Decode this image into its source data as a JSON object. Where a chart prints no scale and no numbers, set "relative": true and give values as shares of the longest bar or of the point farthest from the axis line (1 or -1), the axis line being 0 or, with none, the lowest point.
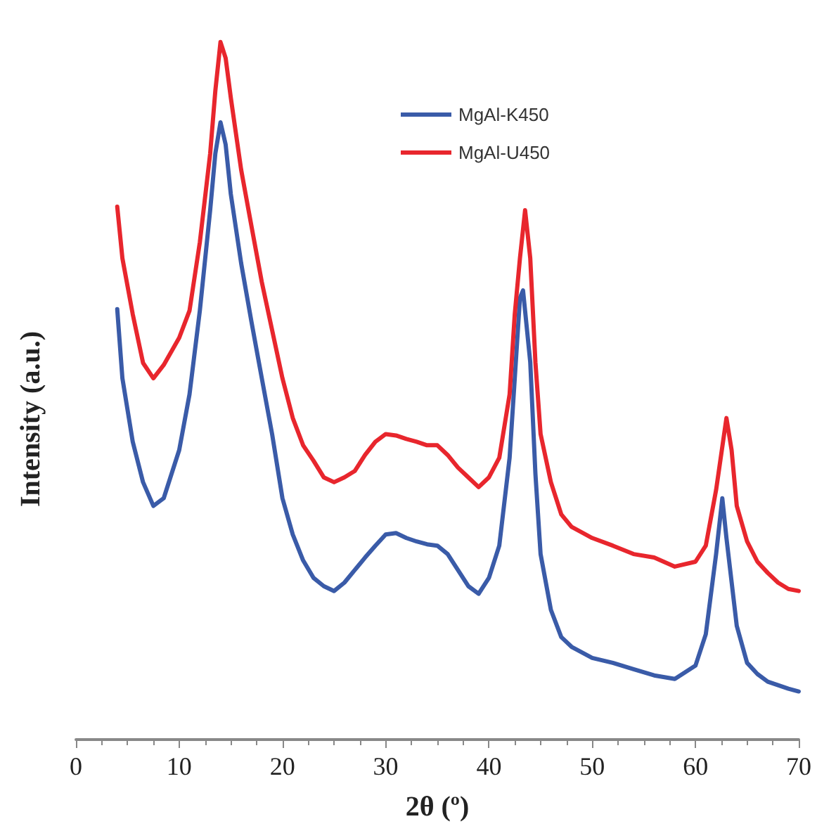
{
  "chart_data": {
    "type": "line",
    "xlabel": "2θ (º)",
    "ylabel": "Intensity (a.u.)",
    "relative": true,
    "xlim": [
      0,
      70
    ],
    "xticks": [
      0,
      10,
      20,
      30,
      40,
      50,
      60,
      70
    ],
    "legend": "top right",
    "grid": false,
    "marker": "none",
    "line_style": "solid",
    "series": [
      {
        "name": "MgAl-K450",
        "color": "#3a5ba8",
        "x": [
          4,
          4.5,
          5.5,
          6.5,
          7.5,
          8.5,
          10,
          11,
          12,
          13,
          13.5,
          14,
          14.5,
          15,
          16,
          17,
          18,
          19,
          20,
          21,
          22,
          23,
          24,
          25,
          26,
          27,
          28,
          29,
          30,
          31,
          32,
          33,
          34,
          35,
          36,
          37,
          38,
          39,
          40,
          41,
          42,
          42.5,
          43,
          43.3,
          44,
          44.5,
          45,
          46,
          47,
          48,
          50,
          52,
          54,
          56,
          58,
          60,
          61,
          62,
          62.6,
          63,
          64,
          65,
          66,
          67,
          68,
          69,
          70
        ],
        "values": [
          0.617,
          0.518,
          0.427,
          0.369,
          0.335,
          0.346,
          0.415,
          0.495,
          0.615,
          0.759,
          0.84,
          0.885,
          0.853,
          0.782,
          0.683,
          0.599,
          0.518,
          0.438,
          0.346,
          0.294,
          0.257,
          0.232,
          0.22,
          0.213,
          0.225,
          0.243,
          0.261,
          0.278,
          0.294,
          0.296,
          0.289,
          0.284,
          0.28,
          0.278,
          0.266,
          0.243,
          0.22,
          0.209,
          0.232,
          0.278,
          0.404,
          0.518,
          0.633,
          0.644,
          0.541,
          0.381,
          0.266,
          0.186,
          0.147,
          0.133,
          0.117,
          0.11,
          0.101,
          0.092,
          0.087,
          0.106,
          0.151,
          0.266,
          0.346,
          0.289,
          0.163,
          0.11,
          0.094,
          0.083,
          0.078,
          0.073,
          0.069
        ]
      },
      {
        "name": "MgAl-U450",
        "color": "#e8262d",
        "x": [
          4,
          4.5,
          5.5,
          6.5,
          7.5,
          8.5,
          10,
          11,
          12,
          13,
          13.5,
          14,
          14.5,
          15,
          16,
          17,
          18,
          19,
          20,
          21,
          22,
          23,
          24,
          25,
          26,
          27,
          28,
          29,
          30,
          31,
          32,
          33,
          34,
          35,
          36,
          37,
          38,
          39,
          40,
          41,
          42,
          42.5,
          43,
          43.5,
          44,
          44.5,
          45,
          46,
          47,
          48,
          50,
          52,
          54,
          56,
          58,
          60,
          61,
          62,
          63,
          63.5,
          64,
          65,
          66,
          67,
          68,
          69,
          70
        ],
        "values": [
          0.764,
          0.69,
          0.61,
          0.54,
          0.518,
          0.537,
          0.576,
          0.615,
          0.713,
          0.84,
          0.93,
          1,
          0.977,
          0.92,
          0.817,
          0.736,
          0.656,
          0.587,
          0.518,
          0.461,
          0.422,
          0.4,
          0.376,
          0.369,
          0.376,
          0.385,
          0.408,
          0.427,
          0.438,
          0.436,
          0.431,
          0.427,
          0.422,
          0.422,
          0.408,
          0.39,
          0.376,
          0.362,
          0.376,
          0.404,
          0.495,
          0.61,
          0.69,
          0.759,
          0.69,
          0.541,
          0.438,
          0.369,
          0.323,
          0.305,
          0.289,
          0.278,
          0.266,
          0.261,
          0.248,
          0.255,
          0.278,
          0.358,
          0.461,
          0.415,
          0.335,
          0.284,
          0.255,
          0.239,
          0.225,
          0.216,
          0.213
        ]
      }
    ]
  }
}
